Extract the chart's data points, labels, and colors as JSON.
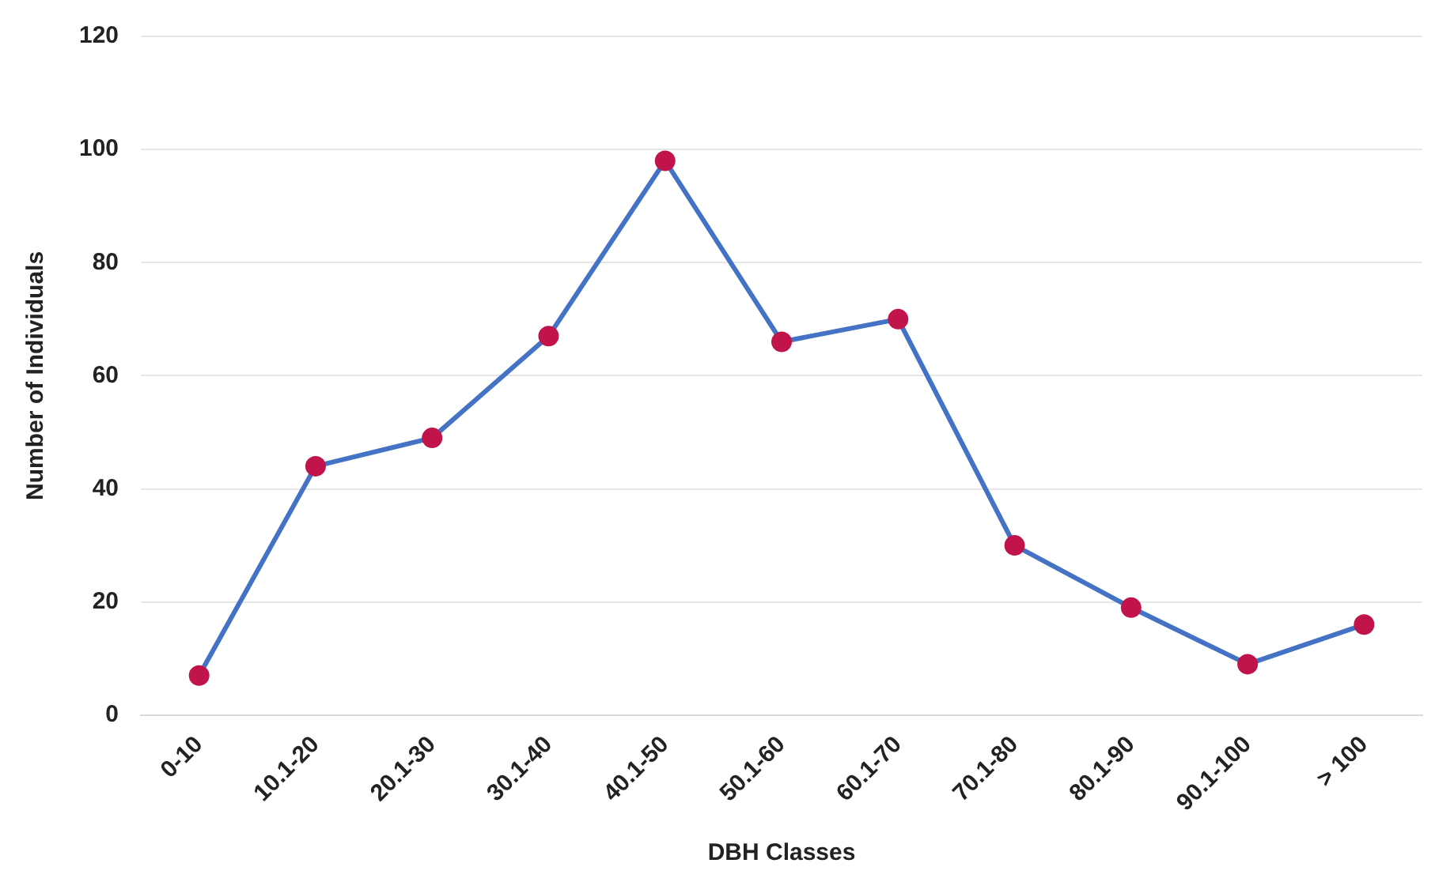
{
  "chart_data": {
    "type": "line",
    "xlabel": "DBH Classes",
    "ylabel": "Number of Individuals",
    "categories": [
      "0-10",
      "10.1-20",
      "20.1-30",
      "30.1-40",
      "40.1-50",
      "50.1-60",
      "60.1-70",
      "70.1-80",
      "80.1-90",
      "90.1-100",
      "> 100"
    ],
    "series": [
      {
        "color": "#4472c4",
        "colors": [
          "#c0144a",
          "#c0144a",
          "#c0144a",
          "#c0144a",
          "#c0144a",
          "#c0144a",
          "#c0144a",
          "#c0144a",
          "#c0144a",
          "#c0144a",
          "#c0144a"
        ],
        "values": [
          7,
          44,
          49,
          67,
          98,
          66,
          70,
          30,
          19,
          9,
          16
        ]
      }
    ],
    "ylim": [
      0,
      120
    ],
    "yticks": [
      0,
      20,
      40,
      60,
      80,
      100,
      120
    ],
    "grid": "y",
    "marker": "circle",
    "line_style": "solid",
    "legend": false
  }
}
